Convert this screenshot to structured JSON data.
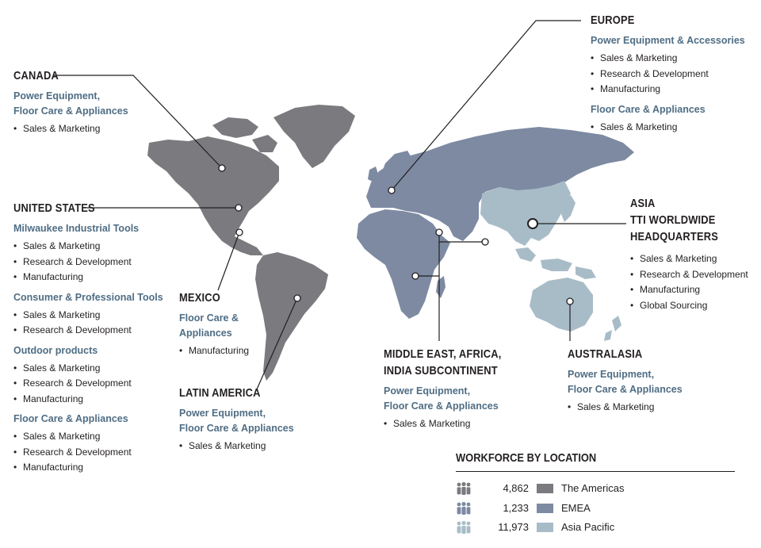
{
  "colors": {
    "americas": "#7b7a7e",
    "emea": "#7d8aa2",
    "asia_pacific": "#a8bcc8",
    "category_text": "#4f6d84",
    "text": "#231f20"
  },
  "regions": {
    "canada": {
      "title": "CANADA",
      "groups": [
        {
          "category": "Power Equipment,",
          "category2": "Floor Care & Appliances",
          "items": [
            "Sales & Marketing"
          ]
        }
      ]
    },
    "united_states": {
      "title": "UNITED STATES",
      "groups": [
        {
          "category": "Milwaukee Industrial Tools",
          "items": [
            "Sales & Marketing",
            "Research & Development",
            "Manufacturing"
          ]
        },
        {
          "category": "Consumer & Professional Tools",
          "items": [
            "Sales & Marketing",
            "Research & Development"
          ]
        },
        {
          "category": "Outdoor products",
          "items": [
            "Sales & Marketing",
            "Research & Development",
            "Manufacturing"
          ]
        },
        {
          "category": "Floor Care & Appliances",
          "items": [
            "Sales & Marketing",
            "Research & Development",
            "Manufacturing"
          ]
        }
      ]
    },
    "mexico": {
      "title": "MEXICO",
      "groups": [
        {
          "category": "Floor Care &",
          "category2": "Appliances",
          "items": [
            "Manufacturing"
          ]
        }
      ]
    },
    "latin_america": {
      "title": "LATIN AMERICA",
      "groups": [
        {
          "category": "Power Equipment,",
          "category2": "Floor Care & Appliances",
          "items": [
            "Sales & Marketing"
          ]
        }
      ]
    },
    "europe": {
      "title": "EUROPE",
      "groups": [
        {
          "category": "Power Equipment & Accessories",
          "items": [
            "Sales & Marketing",
            "Research & Development",
            "Manufacturing"
          ]
        },
        {
          "category": "Floor Care & Appliances",
          "items": [
            "Sales & Marketing"
          ]
        }
      ]
    },
    "asia": {
      "title": "ASIA",
      "title2": "TTI WORLDWIDE",
      "title3": "HEADQUARTERS",
      "groups": [
        {
          "items": [
            "Sales & Marketing",
            "Research & Development",
            "Manufacturing",
            "Global Sourcing"
          ]
        }
      ]
    },
    "meai": {
      "title": "MIDDLE EAST, AFRICA,",
      "title2": "INDIA SUBCONTINENT",
      "groups": [
        {
          "category": "Power Equipment,",
          "category2": "Floor Care & Appliances",
          "items": [
            "Sales & Marketing"
          ]
        }
      ]
    },
    "australasia": {
      "title": "AUSTRALASIA",
      "groups": [
        {
          "category": "Power Equipment,",
          "category2": "Floor Care & Appliances",
          "items": [
            "Sales & Marketing"
          ]
        }
      ]
    }
  },
  "workforce": {
    "title": "WORKFORCE BY LOCATION",
    "icon": "people-group-icon",
    "rows": [
      {
        "count": "4,862",
        "label": "The Americas",
        "color": "#7b7a7e",
        "icon_color": "#7b7a7e"
      },
      {
        "count": "1,233",
        "label": "EMEA",
        "color": "#7d8aa2",
        "icon_color": "#7d8aa2"
      },
      {
        "count": "11,973",
        "label": "Asia Pacific",
        "color": "#a8bcc8",
        "icon_color": "#a8bcc8"
      }
    ]
  }
}
